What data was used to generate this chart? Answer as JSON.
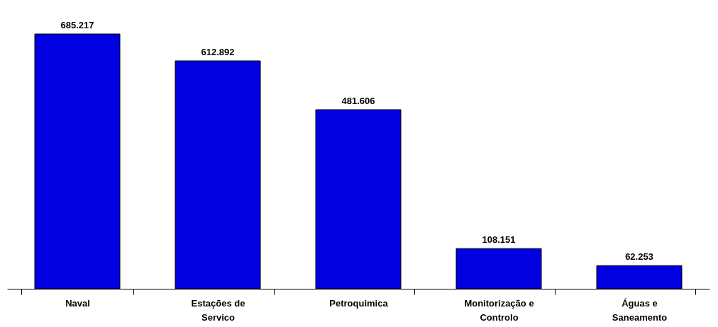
{
  "chart_data": {
    "type": "bar",
    "categories": [
      "Naval",
      "Estações de Servico",
      "Petroquimica",
      "Monitorização e Controlo",
      "Águas e Saneamento"
    ],
    "values": [
      685.217,
      612.892,
      481.606,
      108.151,
      62.253
    ],
    "color": "#0000e0",
    "data_labels": true
  }
}
